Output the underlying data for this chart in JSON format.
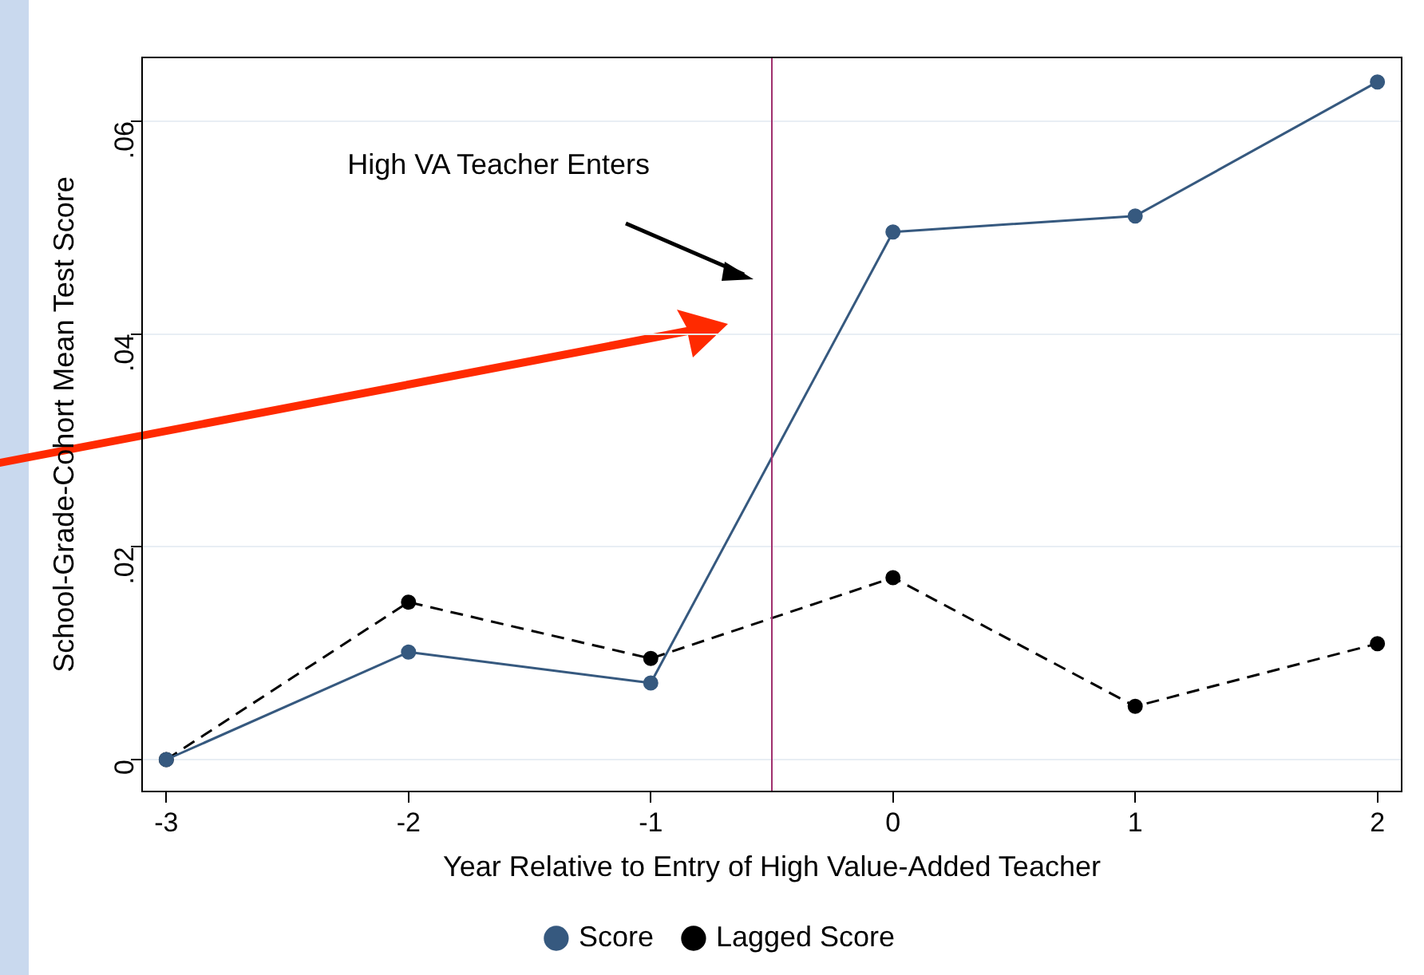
{
  "chart_data": {
    "type": "line",
    "xlabel": "Year Relative to Entry of High Value-Added Teacher",
    "ylabel": "School-Grade-Cohort Mean Test Score",
    "x": [
      -3,
      -2,
      -1,
      0,
      1,
      2
    ],
    "series": [
      {
        "name": "Score",
        "color": "#36597f",
        "values": [
          0,
          0.0101,
          0.0072,
          0.0496,
          0.0511,
          0.0637
        ]
      },
      {
        "name": "Lagged Score",
        "color": "#000000",
        "values": [
          0,
          0.0148,
          0.0095,
          0.0171,
          0.005,
          0.0109
        ],
        "line_style": "dashed"
      }
    ],
    "xlim": [
      -3.1,
      2.1
    ],
    "xticks": [
      -3,
      -2,
      -1,
      0,
      1,
      2
    ],
    "ylim": [
      -0.003,
      0.066
    ],
    "yticks": [
      {
        "value": 0,
        "label": "0"
      },
      {
        "value": 0.02,
        "label": ".02"
      },
      {
        "value": 0.04,
        "label": ".04"
      },
      {
        "value": 0.06,
        "label": ".06"
      }
    ],
    "ref_lines": [
      {
        "axis": "x",
        "value": -0.5,
        "color": "#a0306e"
      }
    ],
    "annotations": [
      "High VA Teacher Enters"
    ],
    "grid": "y",
    "legend": "bottom",
    "marker": "circle"
  }
}
